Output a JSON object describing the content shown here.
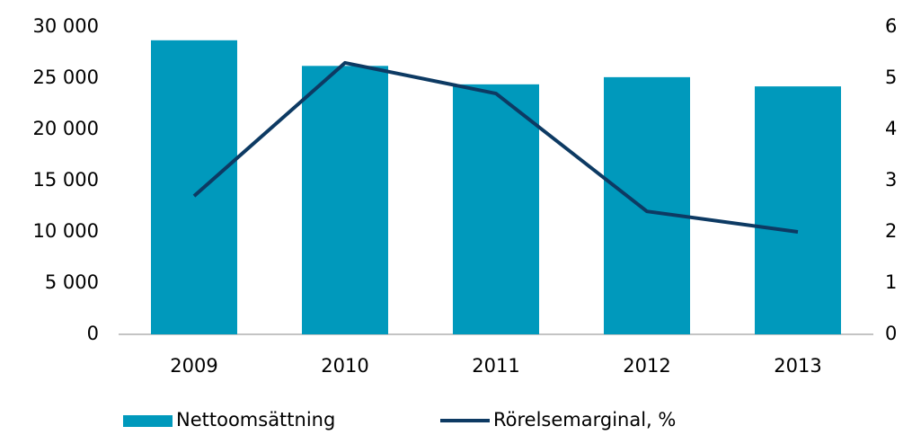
{
  "chart_data": {
    "type": "bar",
    "categories": [
      "2009",
      "2010",
      "2011",
      "2012",
      "2013"
    ],
    "series": [
      {
        "name": "Nettoomsättning",
        "type": "bar",
        "color": "#0099bc",
        "values": [
          28700,
          26200,
          24400,
          25100,
          24200
        ]
      },
      {
        "name": "Rörelsemarginal, %",
        "type": "line",
        "axis": "y2",
        "color": "#0d3a63",
        "values": [
          2.7,
          5.3,
          4.7,
          2.4,
          2.0
        ]
      }
    ],
    "ylim": [
      0,
      30000
    ],
    "yticks": [
      0,
      {
        "value": 5000,
        "label": "5 000"
      },
      {
        "value": 10000,
        "label": "10 000"
      },
      {
        "value": 15000,
        "label": "15 000"
      },
      {
        "value": 20000,
        "label": "20 000"
      },
      {
        "value": 25000,
        "label": "25 000"
      },
      {
        "value": 30000,
        "label": "30 000"
      }
    ],
    "y2lim": [
      0,
      6
    ],
    "y2ticks": [
      0,
      1,
      2,
      3,
      4,
      5,
      6
    ],
    "legend": "bottom"
  }
}
